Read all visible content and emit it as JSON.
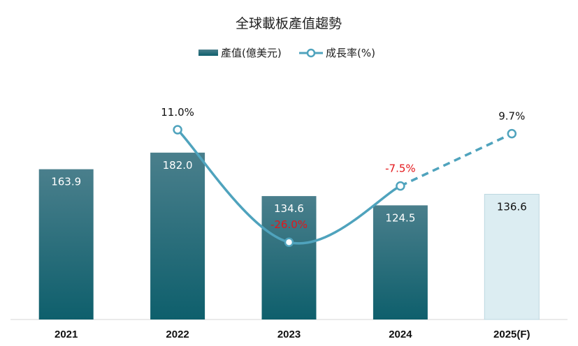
{
  "chart_data": {
    "type": "bar",
    "title": "全球載板產值趨勢",
    "categories": [
      "2021",
      "2022",
      "2023",
      "2024",
      "2025(F)"
    ],
    "series": [
      {
        "name": "產值(億美元)",
        "kind": "bar",
        "values": [
          163.9,
          182.0,
          134.6,
          124.5,
          136.6
        ],
        "labels": [
          "163.9",
          "182.0",
          "134.6",
          "124.5",
          "136.6"
        ],
        "forecast_from_index": 4
      },
      {
        "name": "成長率(%)",
        "kind": "line",
        "values": [
          null,
          11.0,
          -26.0,
          -7.5,
          9.7
        ],
        "labels": [
          "",
          "11.0%",
          "-26.0%",
          "-7.5%",
          "9.7%"
        ],
        "forecast_from_index": 3
      }
    ],
    "y_bar_range": [
      0,
      280
    ],
    "y_line_range": [
      -45,
      25
    ],
    "legend_position": "top-center",
    "grid": false,
    "colors": {
      "bar_top": "#4a7f8c",
      "bar_bottom": "#0e5f6c",
      "forecast_bar": "#dcedf2",
      "forecast_bar_border": "#bcd8e0",
      "line": "#4fa3bd",
      "negative_label": "#e3161a",
      "positive_label": "#111111"
    }
  }
}
